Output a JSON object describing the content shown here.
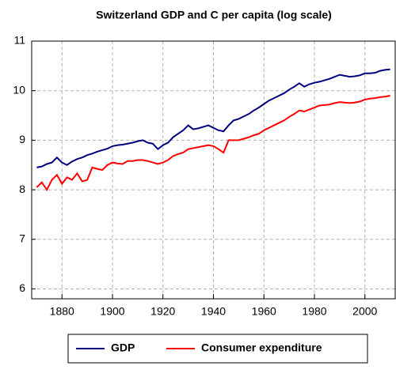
{
  "chart_data": {
    "type": "line",
    "title": "Switzerland GDP and C per capita (log scale)",
    "x": [
      1870,
      1872,
      1874,
      1876,
      1878,
      1880,
      1882,
      1884,
      1886,
      1888,
      1890,
      1892,
      1894,
      1896,
      1898,
      1900,
      1902,
      1904,
      1906,
      1908,
      1910,
      1912,
      1914,
      1916,
      1918,
      1920,
      1922,
      1924,
      1926,
      1928,
      1930,
      1932,
      1934,
      1936,
      1938,
      1940,
      1942,
      1944,
      1946,
      1948,
      1950,
      1952,
      1954,
      1956,
      1958,
      1960,
      1962,
      1964,
      1966,
      1968,
      1970,
      1972,
      1974,
      1976,
      1978,
      1980,
      1982,
      1984,
      1986,
      1988,
      1990,
      1992,
      1994,
      1996,
      1998,
      2000,
      2002,
      2004,
      2006,
      2008,
      2010
    ],
    "series": [
      {
        "name": "GDP",
        "color": "#000080",
        "values": [
          8.45,
          8.47,
          8.52,
          8.55,
          8.65,
          8.55,
          8.5,
          8.57,
          8.62,
          8.65,
          8.7,
          8.73,
          8.77,
          8.8,
          8.83,
          8.88,
          8.9,
          8.91,
          8.93,
          8.95,
          8.98,
          9.0,
          8.95,
          8.93,
          8.82,
          8.9,
          8.95,
          9.06,
          9.13,
          9.2,
          9.3,
          9.22,
          9.24,
          9.27,
          9.3,
          9.25,
          9.2,
          9.18,
          9.3,
          9.4,
          9.43,
          9.48,
          9.53,
          9.6,
          9.66,
          9.73,
          9.8,
          9.85,
          9.9,
          9.95,
          10.02,
          10.08,
          10.15,
          10.08,
          10.13,
          10.16,
          10.18,
          10.21,
          10.24,
          10.28,
          10.32,
          10.3,
          10.28,
          10.29,
          10.31,
          10.35,
          10.35,
          10.36,
          10.4,
          10.42,
          10.43
        ]
      },
      {
        "name": "Consumer expenditure",
        "color": "#ff0000",
        "values": [
          8.05,
          8.15,
          8.0,
          8.2,
          8.3,
          8.12,
          8.25,
          8.2,
          8.33,
          8.17,
          8.2,
          8.45,
          8.42,
          8.4,
          8.5,
          8.55,
          8.53,
          8.52,
          8.58,
          8.58,
          8.6,
          8.6,
          8.58,
          8.55,
          8.52,
          8.55,
          8.6,
          8.68,
          8.72,
          8.75,
          8.82,
          8.84,
          8.86,
          8.88,
          8.9,
          8.88,
          8.82,
          8.75,
          9.0,
          9.0,
          9.0,
          9.03,
          9.06,
          9.1,
          9.13,
          9.2,
          9.25,
          9.3,
          9.35,
          9.4,
          9.47,
          9.53,
          9.6,
          9.58,
          9.62,
          9.66,
          9.7,
          9.71,
          9.72,
          9.75,
          9.77,
          9.76,
          9.75,
          9.76,
          9.78,
          9.82,
          9.84,
          9.85,
          9.87,
          9.88,
          9.9
        ]
      }
    ],
    "xlim": [
      1868,
      2012
    ],
    "xticks": [
      1880,
      1900,
      1920,
      1940,
      1960,
      1980,
      2000
    ],
    "ylim": [
      5.8,
      11
    ],
    "yticks": [
      6,
      7,
      8,
      9,
      10,
      11
    ],
    "grid": true,
    "legend": "bottom"
  }
}
